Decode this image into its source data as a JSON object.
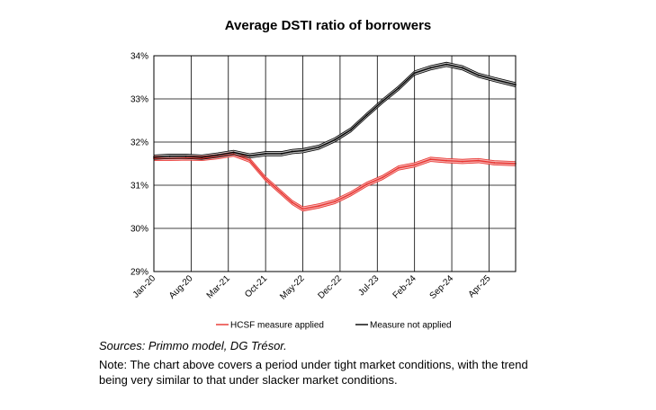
{
  "chart_data": {
    "type": "line",
    "title": "Average DSTI ratio of borrowers",
    "categories": [
      "Jan-20",
      "Aug-20",
      "Mar-21",
      "Oct-21",
      "May-22",
      "Dec-22",
      "Jul-23",
      "Feb-24",
      "Sep-24",
      "Apr-25"
    ],
    "x_start": "2020-01",
    "x_end": "2025-09",
    "ylim": [
      29,
      34
    ],
    "yticks": [
      "29%",
      "30%",
      "31%",
      "32%",
      "33%",
      "34%"
    ],
    "grid": true,
    "legend_position": "bottom",
    "series": [
      {
        "name": "HCSF measure applied",
        "color": "#e8332e",
        "band_color": "#f4a6a6",
        "points": [
          [
            "2020-01",
            31.62
          ],
          [
            "2020-04",
            31.62
          ],
          [
            "2020-07",
            31.63
          ],
          [
            "2020-10",
            31.62
          ],
          [
            "2021-01",
            31.66
          ],
          [
            "2021-04",
            31.72
          ],
          [
            "2021-07",
            31.58
          ],
          [
            "2021-10",
            31.15
          ],
          [
            "2022-01",
            30.82
          ],
          [
            "2022-03",
            30.6
          ],
          [
            "2022-05",
            30.45
          ],
          [
            "2022-08",
            30.52
          ],
          [
            "2022-11",
            30.62
          ],
          [
            "2023-02",
            30.8
          ],
          [
            "2023-05",
            31.02
          ],
          [
            "2023-08",
            31.18
          ],
          [
            "2023-11",
            31.4
          ],
          [
            "2024-02",
            31.47
          ],
          [
            "2024-05",
            31.6
          ],
          [
            "2024-08",
            31.57
          ],
          [
            "2024-11",
            31.55
          ],
          [
            "2025-02",
            31.57
          ],
          [
            "2025-05",
            31.52
          ],
          [
            "2025-09",
            31.5
          ]
        ]
      },
      {
        "name": "Measure not applied",
        "color": "#000000",
        "band_color": "#b3b3b3",
        "points": [
          [
            "2020-01",
            31.65
          ],
          [
            "2020-04",
            31.67
          ],
          [
            "2020-07",
            31.67
          ],
          [
            "2020-10",
            31.65
          ],
          [
            "2021-01",
            31.7
          ],
          [
            "2021-04",
            31.76
          ],
          [
            "2021-07",
            31.68
          ],
          [
            "2021-10",
            31.73
          ],
          [
            "2022-01",
            31.73
          ],
          [
            "2022-03",
            31.78
          ],
          [
            "2022-05",
            31.8
          ],
          [
            "2022-08",
            31.88
          ],
          [
            "2022-11",
            32.05
          ],
          [
            "2023-02",
            32.28
          ],
          [
            "2023-05",
            32.62
          ],
          [
            "2023-08",
            32.95
          ],
          [
            "2023-11",
            33.25
          ],
          [
            "2024-02",
            33.6
          ],
          [
            "2024-05",
            33.72
          ],
          [
            "2024-08",
            33.8
          ],
          [
            "2024-11",
            33.72
          ],
          [
            "2025-02",
            33.55
          ],
          [
            "2025-05",
            33.45
          ],
          [
            "2025-09",
            33.33
          ]
        ]
      }
    ]
  },
  "sources": "Sources: Primmo model, DG Trésor.",
  "note": "Note: The chart above covers a period under tight market conditions, with the trend being very similar to that under slacker market conditions."
}
